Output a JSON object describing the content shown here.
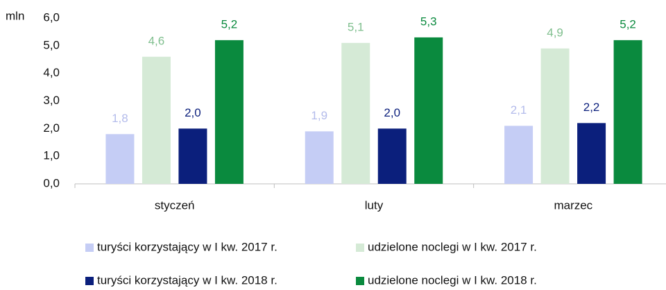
{
  "chart_data": {
    "type": "bar",
    "y_label": "mln",
    "categories": [
      "styczeń",
      "luty",
      "marzec"
    ],
    "series": [
      {
        "name": "turyści korzystający w I kw. 2017 r.",
        "color": "#c5cdf5",
        "label_color": "#b3bbeb",
        "values": [
          1.8,
          1.9,
          2.1
        ],
        "value_labels": [
          "1,8",
          "1,9",
          "2,1"
        ]
      },
      {
        "name": "udzielone noclegi w I kw. 2017 r.",
        "color": "#d5ead6",
        "label_color": "#7fbf8e",
        "values": [
          4.6,
          5.1,
          4.9
        ],
        "value_labels": [
          "4,6",
          "5,1",
          "4,9"
        ]
      },
      {
        "name": "turyści korzystający w I kw. 2018 r.",
        "color": "#0b1f7c",
        "label_color": "#0b1f7c",
        "values": [
          2.0,
          2.0,
          2.2
        ],
        "value_labels": [
          "2,0",
          "2,0",
          "2,2"
        ]
      },
      {
        "name": "udzielone noclegi w I kw. 2018 r.",
        "color": "#0a8a3e",
        "label_color": "#0a8a3e",
        "values": [
          5.2,
          5.3,
          5.2
        ],
        "value_labels": [
          "5,2",
          "5,3",
          "5,2"
        ]
      }
    ],
    "ylim": [
      0,
      6
    ],
    "yticks": [
      {
        "value": 0,
        "label": "0,0"
      },
      {
        "value": 1,
        "label": "1,0"
      },
      {
        "value": 2,
        "label": "2,0"
      },
      {
        "value": 3,
        "label": "3,0"
      },
      {
        "value": 4,
        "label": "4,0"
      },
      {
        "value": 5,
        "label": "5,0"
      },
      {
        "value": 6,
        "label": "6,0"
      }
    ],
    "grid": false,
    "legend": "bottom"
  }
}
